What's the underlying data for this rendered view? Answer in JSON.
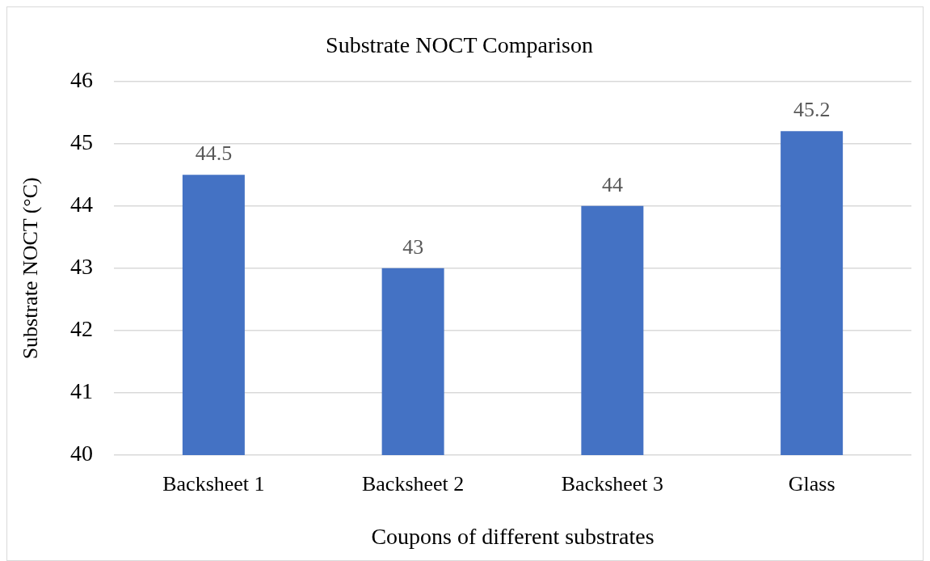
{
  "chart_data": {
    "type": "bar",
    "title": "Substrate NOCT Comparison",
    "xlabel": "Coupons of different substrates",
    "ylabel": "Substrate NOCT (°C)",
    "categories": [
      "Backsheet 1",
      "Backsheet 2",
      "Backsheet 3",
      "Glass"
    ],
    "values": [
      44.5,
      43,
      44,
      45.2
    ],
    "color": "#4472c4",
    "ylim": [
      40,
      46
    ],
    "yticks": [
      40,
      41,
      42,
      43,
      44,
      45,
      46
    ],
    "grid": "y",
    "data_labels": true
  }
}
